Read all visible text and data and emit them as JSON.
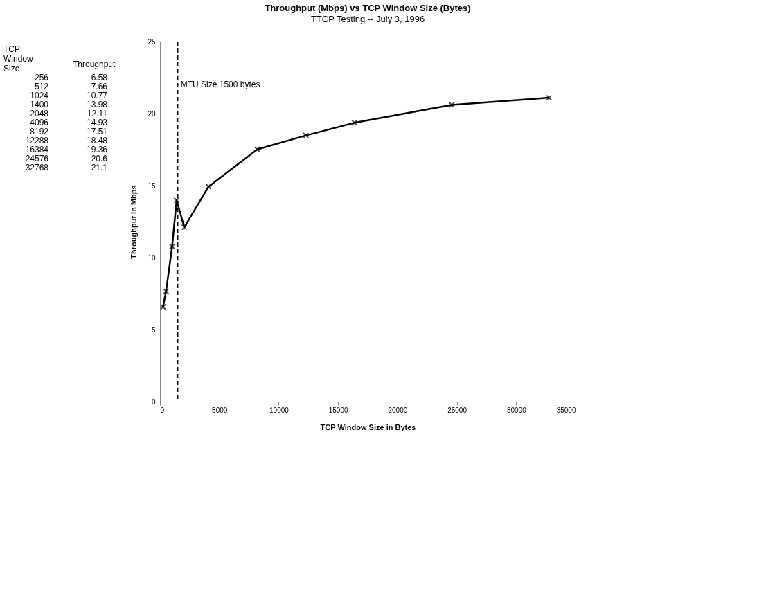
{
  "chart_data": [
    {
      "type": "other",
      "annotations": [
        "TCP Window Size",
        "Throughput",
        "256",
        "6.58",
        "512",
        "7.66",
        "1024",
        "10.77",
        "1400",
        "13.98",
        "2048",
        "12.11",
        "4096",
        "14.93",
        "8192",
        "17.51",
        "12288",
        "18.48",
        "16384",
        "19.36",
        "24576",
        "20.6",
        "32768",
        "21.1"
      ]
    },
    {
      "type": "line",
      "title": "Throughput (Mbps) vs TCP Window Size (Bytes)",
      "subtitle": "TTCP Testing -- July 3, 1996",
      "xlabel": "TCP Window Size in Bytes",
      "ylabel": "Throughput in Mbps",
      "x": [
        256,
        512,
        1024,
        1400,
        2048,
        4096,
        8192,
        12288,
        16384,
        24576,
        32768
      ],
      "series": [
        {
          "color": "#000000",
          "values": [
            6.58,
            7.66,
            10.77,
            13.98,
            12.11,
            14.93,
            17.51,
            18.48,
            19.36,
            20.6,
            21.1
          ]
        }
      ],
      "xlim": [
        0,
        35000
      ],
      "xticks": [
        0,
        5000,
        10000,
        15000,
        20000,
        25000,
        30000,
        35000
      ],
      "ylim": [
        0,
        25
      ],
      "yticks": [
        0,
        5,
        10,
        15,
        20,
        25
      ],
      "grid": "y",
      "marker": "cross",
      "line_style": "solid",
      "ref_lines": [
        {
          "axis": "x",
          "value": 1500,
          "label": "MTU Size 1500 bytes",
          "color": "#000000",
          "line_style": "dashed"
        }
      ]
    }
  ]
}
